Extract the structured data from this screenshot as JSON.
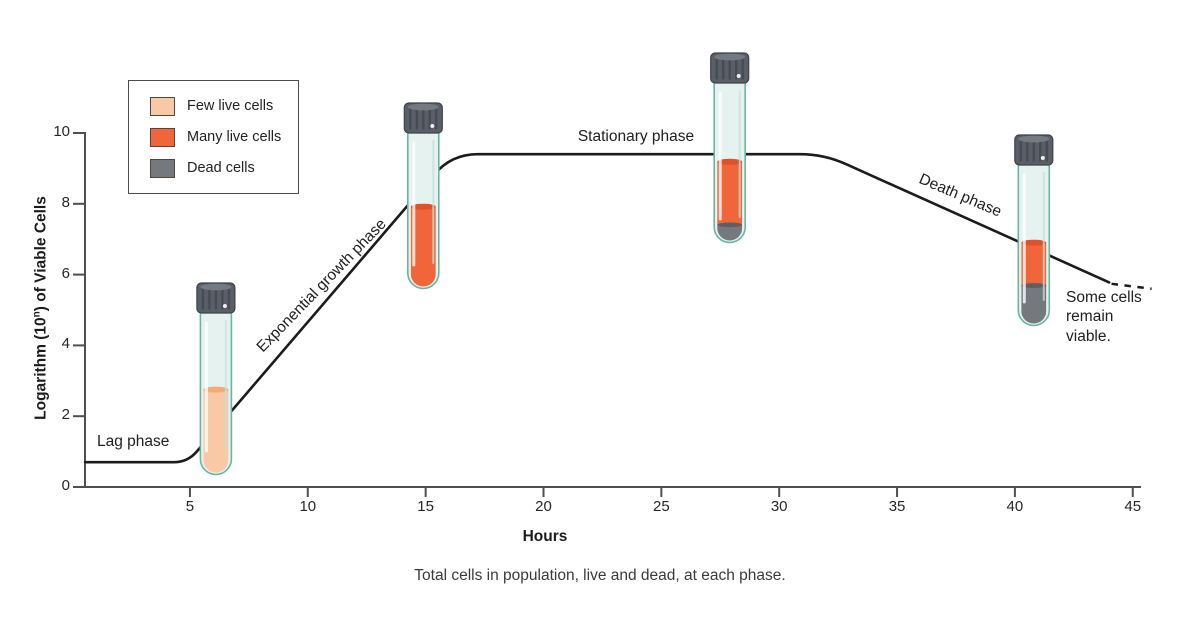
{
  "figure": {
    "caption": "Total cells in population, live and dead, at each phase.",
    "background_color": "#ffffff"
  },
  "legend": {
    "items": [
      {
        "key": "few_live",
        "label": "Few live cells",
        "color": "#f8c9a4"
      },
      {
        "key": "many_live",
        "label": "Many live cells",
        "color": "#f0663a"
      },
      {
        "key": "dead",
        "label": "Dead cells",
        "color": "#75787d"
      }
    ]
  },
  "chart_data": {
    "type": "line",
    "title": "",
    "xlabel": "Hours",
    "ylabel": "Logarithm (10n) of Viable Cells",
    "ylabel_parts": {
      "pre": "Logarithm (10",
      "sup": "n",
      "post": ") of Viable Cells"
    },
    "x_ticks": [
      5,
      10,
      15,
      20,
      25,
      30,
      35,
      40,
      45
    ],
    "y_ticks": [
      0,
      2,
      4,
      6,
      8,
      10
    ],
    "xlim": [
      0,
      46
    ],
    "ylim": [
      0,
      10.2
    ],
    "grid": false,
    "legend_position": "upper-left",
    "curve": {
      "color": "#1c1c1c",
      "axis_color": "#4f4f4f",
      "solid_points": [
        [
          0.55,
          0.7
        ],
        [
          4.9,
          0.7
        ],
        [
          16.1,
          9.4
        ],
        [
          31.9,
          9.4
        ],
        [
          44.0,
          5.78
        ]
      ],
      "corner_radii": [
        14,
        26,
        24
      ],
      "dashed_tail": [
        [
          44.1,
          5.74
        ],
        [
          45.8,
          5.6
        ]
      ]
    },
    "phases": [
      {
        "label": "Lag phase",
        "start_hours": 0,
        "end_hours": 5
      },
      {
        "label": "Exponential growth phase",
        "start_hours": 5,
        "end_hours": 16
      },
      {
        "label": "Stationary phase",
        "start_hours": 16,
        "end_hours": 32
      },
      {
        "label": "Death phase",
        "start_hours": 32,
        "end_hours": 45
      }
    ],
    "annotation": "Some cells remain viable.",
    "tubes": [
      {
        "phase": "lag",
        "hours": 6.1,
        "layers": [
          {
            "key": "few_live",
            "frac": 0.52
          }
        ]
      },
      {
        "phase": "exponential",
        "hours": 14.9,
        "layers": [
          {
            "key": "many_live",
            "frac": 0.52
          }
        ]
      },
      {
        "phase": "stationary",
        "hours": 27.9,
        "layers": [
          {
            "key": "many_live",
            "frac": 0.4
          },
          {
            "key": "dead",
            "frac": 0.1
          }
        ]
      },
      {
        "phase": "death",
        "hours": 40.8,
        "layers": [
          {
            "key": "many_live",
            "frac": 0.27
          },
          {
            "key": "dead",
            "frac": 0.24
          }
        ]
      }
    ]
  }
}
